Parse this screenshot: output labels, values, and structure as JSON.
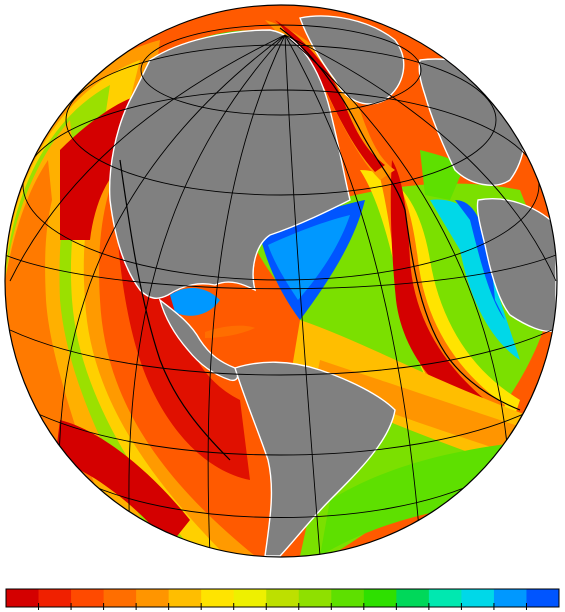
{
  "map": {
    "projection": "orthographic",
    "subject": "seafloor-age",
    "continent_color": "#808080",
    "graticule_color": "#000000",
    "coastline_color": "#ffffff"
  },
  "legend": {
    "colors": [
      "#d40000",
      "#f02000",
      "#ff4a00",
      "#ff6e00",
      "#ff9500",
      "#ffbe00",
      "#ffe400",
      "#eef000",
      "#bde000",
      "#8fe000",
      "#5ee000",
      "#2ee000",
      "#00d85a",
      "#00e8b0",
      "#00d8e8",
      "#0098ff",
      "#0055ff"
    ]
  }
}
